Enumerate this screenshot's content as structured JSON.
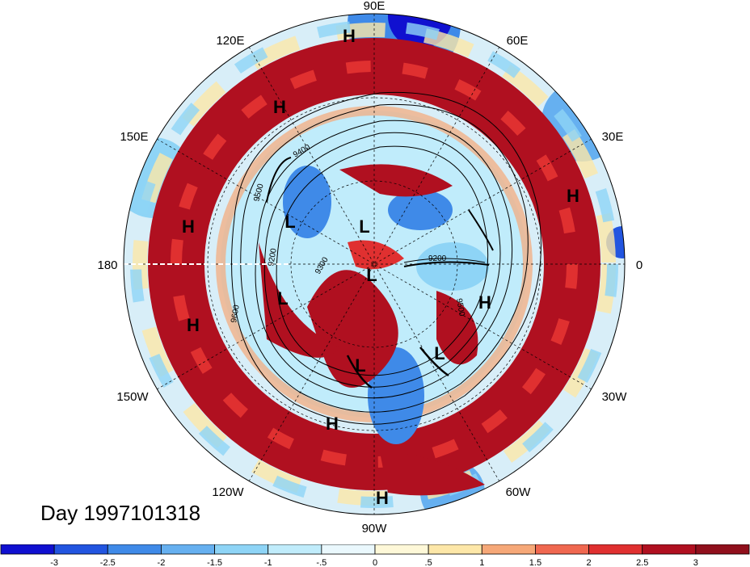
{
  "title": "Day 1997101318",
  "projection": "polar-stereographic-north",
  "longitude_labels": [
    "90E",
    "60E",
    "30E",
    "0",
    "30W",
    "60W",
    "90W",
    "120W",
    "150W",
    "180",
    "150E",
    "120E"
  ],
  "pressure_systems": [
    {
      "type": "H",
      "label": "H"
    },
    {
      "type": "H",
      "label": "H"
    },
    {
      "type": "H",
      "label": "H"
    },
    {
      "type": "H",
      "label": "H"
    },
    {
      "type": "H",
      "label": "H"
    },
    {
      "type": "H",
      "label": "H"
    },
    {
      "type": "H",
      "label": "H"
    },
    {
      "type": "H",
      "label": "H"
    },
    {
      "type": "L",
      "label": "L"
    },
    {
      "type": "L",
      "label": "L"
    },
    {
      "type": "L",
      "label": "L"
    },
    {
      "type": "L",
      "label": "L"
    },
    {
      "type": "L",
      "label": "L"
    },
    {
      "type": "L",
      "label": "L"
    }
  ],
  "contour_labels": [
    "9200",
    "9400",
    "9500",
    "9600",
    "9300",
    "9200",
    "9500"
  ],
  "colorbar": {
    "tick_labels": [
      "-3",
      "-2.5",
      "-2",
      "-1.5",
      "-1",
      "-.5",
      "0",
      ".5",
      "1",
      "1.5",
      "2",
      "2.5",
      "3"
    ],
    "colors": [
      "#1010d0",
      "#2255e0",
      "#3f8ae8",
      "#66b0f0",
      "#8ed4f6",
      "#c0ecfb",
      "#eaf8fd",
      "#fef8d8",
      "#fde7a8",
      "#f6a878",
      "#f06850",
      "#e03030",
      "#b01020",
      "#90101c"
    ]
  }
}
